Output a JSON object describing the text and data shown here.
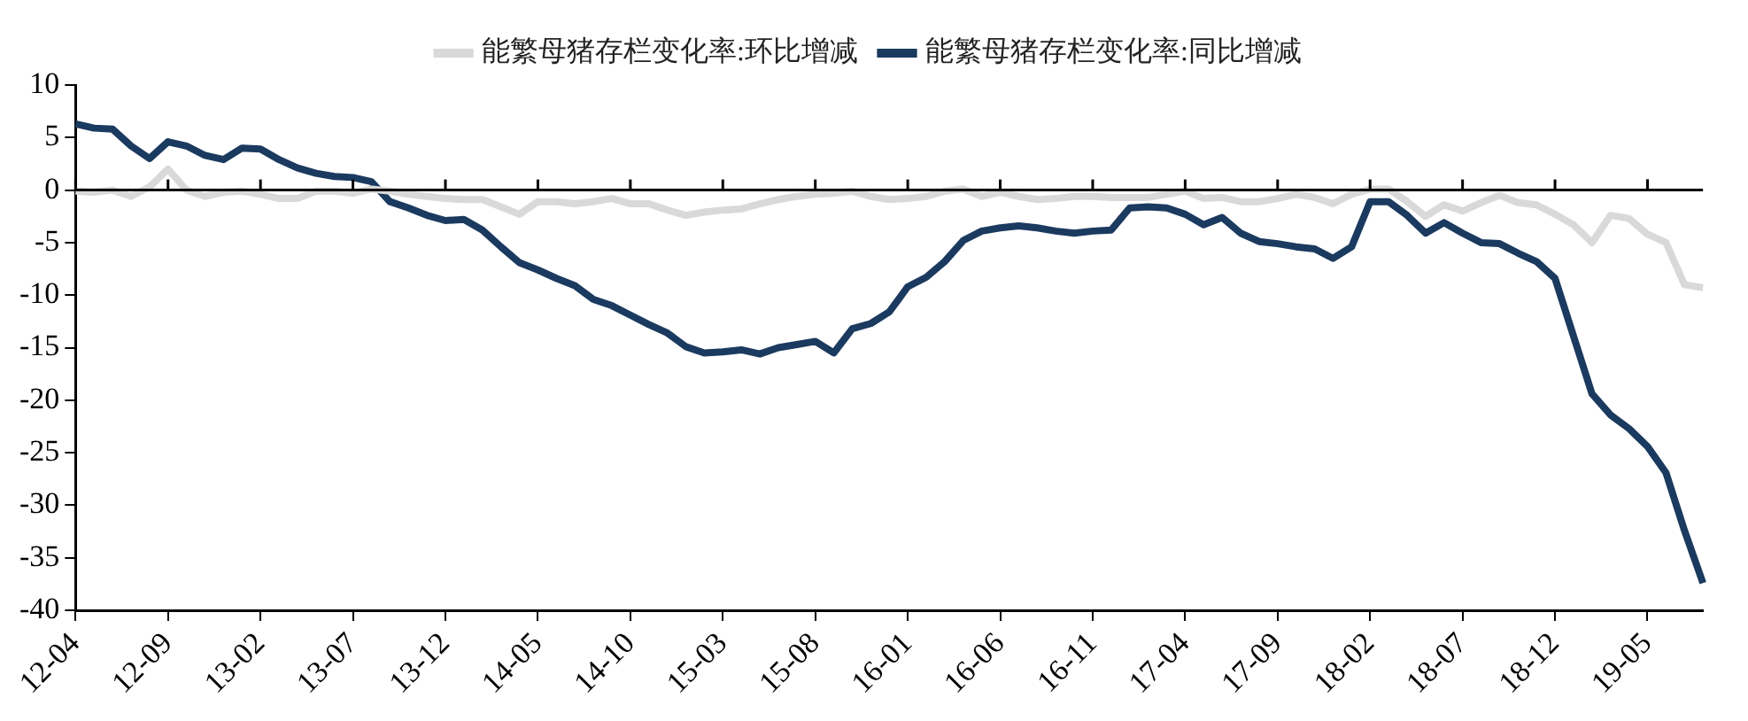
{
  "chart_data": {
    "type": "line",
    "categories": [
      "12-04",
      null,
      null,
      null,
      null,
      "12-09",
      null,
      null,
      null,
      null,
      "13-02",
      null,
      null,
      null,
      null,
      "13-07",
      null,
      null,
      null,
      null,
      "13-12",
      null,
      null,
      null,
      null,
      "14-05",
      null,
      null,
      null,
      null,
      "14-10",
      null,
      null,
      null,
      null,
      "15-03",
      null,
      null,
      null,
      null,
      "15-08",
      null,
      null,
      null,
      null,
      "16-01",
      null,
      null,
      null,
      null,
      "16-06",
      null,
      null,
      null,
      null,
      "16-11",
      null,
      null,
      null,
      null,
      "17-04",
      null,
      null,
      null,
      null,
      "17-09",
      null,
      null,
      null,
      null,
      "18-02",
      null,
      null,
      null,
      null,
      "18-07",
      null,
      null,
      null,
      null,
      "18-12",
      null,
      null,
      null,
      null,
      "19-05",
      null,
      null,
      null
    ],
    "series": [
      {
        "name": "能繁母猪存栏变化率:环比增减",
        "color": "#d9d9d9",
        "values": [
          -0.1,
          -0.2,
          0.0,
          -0.6,
          0.3,
          2.0,
          0.0,
          -0.6,
          -0.2,
          -0.1,
          -0.4,
          -0.8,
          -0.8,
          -0.1,
          -0.1,
          -0.3,
          0.1,
          -0.1,
          -0.4,
          -0.6,
          -0.8,
          -0.9,
          -0.9,
          -1.6,
          -2.3,
          -1.1,
          -1.1,
          -1.3,
          -1.1,
          -0.8,
          -1.3,
          -1.3,
          -1.9,
          -2.4,
          -2.1,
          -1.9,
          -1.8,
          -1.3,
          -0.9,
          -0.6,
          -0.4,
          -0.3,
          -0.1,
          -0.6,
          -0.9,
          -0.8,
          -0.6,
          -0.1,
          0.1,
          -0.6,
          -0.2,
          -0.6,
          -0.9,
          -0.8,
          -0.6,
          -0.6,
          -0.7,
          -0.7,
          -0.7,
          -0.4,
          -0.1,
          -0.8,
          -0.7,
          -1.1,
          -1.1,
          -0.8,
          -0.4,
          -0.7,
          -1.3,
          -0.4,
          0.1,
          0.1,
          -1.1,
          -2.5,
          -1.4,
          -2.0,
          -1.2,
          -0.5,
          -1.2,
          -1.4,
          -2.3,
          -3.3,
          -5.0,
          -2.4,
          -2.7,
          -4.2,
          -5.0,
          -9.0,
          -9.3
        ]
      },
      {
        "name": "能繁母猪存栏变化率:同比增减",
        "color": "#1b3a5f",
        "values": [
          6.3,
          5.9,
          5.8,
          4.2,
          3.0,
          4.6,
          4.2,
          3.3,
          2.9,
          4.0,
          3.9,
          2.9,
          2.1,
          1.6,
          1.3,
          1.2,
          0.8,
          -1.1,
          -1.7,
          -2.4,
          -2.9,
          -2.8,
          -3.8,
          -5.4,
          -6.9,
          -7.6,
          -8.4,
          -9.1,
          -10.4,
          -11.0,
          -11.9,
          -12.8,
          -13.6,
          -14.9,
          -15.5,
          -15.4,
          -15.2,
          -15.6,
          -15.0,
          -14.7,
          -14.4,
          -15.5,
          -13.2,
          -12.7,
          -11.6,
          -9.2,
          -8.3,
          -6.8,
          -4.8,
          -3.9,
          -3.6,
          -3.4,
          -3.6,
          -3.9,
          -4.1,
          -3.9,
          -3.8,
          -1.7,
          -1.6,
          -1.7,
          -2.3,
          -3.3,
          -2.6,
          -4.1,
          -4.9,
          -5.1,
          -5.4,
          -5.6,
          -6.5,
          -5.4,
          -1.1,
          -1.1,
          -2.4,
          -4.1,
          -3.1,
          -4.1,
          -5.0,
          -5.1,
          -6.0,
          -6.8,
          -8.4,
          -13.9,
          -19.4,
          -21.4,
          -22.7,
          -24.4,
          -26.9,
          -32.4,
          -37.4
        ]
      }
    ],
    "ylim": [
      -40,
      10
    ],
    "yticks": [
      -40,
      -35,
      -30,
      -25,
      -20,
      -15,
      -10,
      -5,
      0,
      5,
      10
    ],
    "grid": false,
    "ref_lines": [
      {
        "axis": "y",
        "value": 0,
        "color": "#000000",
        "line_style": "solid"
      }
    ],
    "legend": "top",
    "marker": "none",
    "line_style": "solid"
  }
}
